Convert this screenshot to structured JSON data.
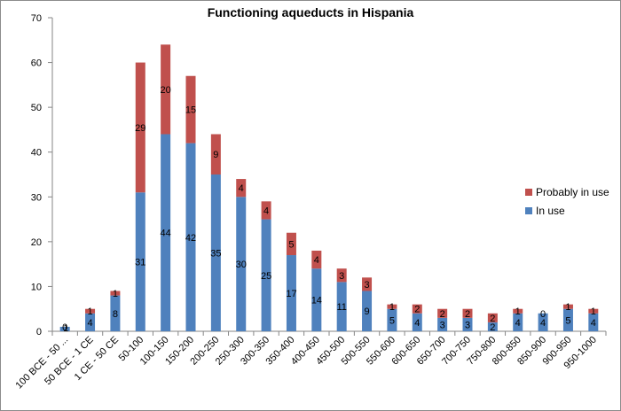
{
  "chart_data": {
    "type": "bar",
    "stacked": true,
    "title": "Functioning aqueducts in Hispania",
    "xlabel": "",
    "ylabel": "",
    "ylim": [
      0,
      70
    ],
    "yticks": [
      0,
      10,
      20,
      30,
      40,
      50,
      60,
      70
    ],
    "categories": [
      "100 BCE - 50 ...",
      "50 BCE - 1 CE",
      "1 CE - 50 CE",
      "50-100",
      "100-150",
      "150-200",
      "200-250",
      "250-300",
      "300-350",
      "350-400",
      "400-450",
      "450-500",
      "500-550",
      "550-600",
      "600-650",
      "650-700",
      "700-750",
      "750-800",
      "800-850",
      "850-900",
      "900-950",
      "950-1000"
    ],
    "series": [
      {
        "name": "In use",
        "color": "#4f81bd",
        "values": [
          1,
          4,
          8,
          31,
          44,
          42,
          35,
          30,
          25,
          17,
          14,
          11,
          9,
          5,
          4,
          3,
          3,
          2,
          4,
          4,
          5,
          4
        ]
      },
      {
        "name": "Probably in use",
        "color": "#c0504d",
        "values": [
          0,
          1,
          1,
          29,
          20,
          15,
          9,
          4,
          4,
          5,
          4,
          3,
          3,
          1,
          2,
          2,
          2,
          2,
          1,
          0,
          1,
          1
        ]
      }
    ],
    "legend_position": "right",
    "grid": false
  }
}
